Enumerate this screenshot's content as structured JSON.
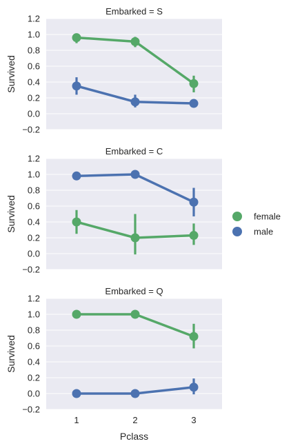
{
  "chart_data": [
    {
      "type": "line",
      "title": "Embarked = S",
      "xlabel": "",
      "ylabel": "Survived",
      "categories": [
        "1",
        "2",
        "3"
      ],
      "ylim": [
        -0.2,
        1.2
      ],
      "yticks": [
        "−0.2",
        "0.0",
        "0.2",
        "0.4",
        "0.6",
        "0.8",
        "1.0",
        "1.2"
      ],
      "grid": true,
      "series": [
        {
          "name": "female",
          "values": [
            0.96,
            0.91,
            0.38
          ],
          "ci_low": [
            0.89,
            0.84,
            0.27
          ],
          "ci_high": [
            0.99,
            0.97,
            0.48
          ]
        },
        {
          "name": "male",
          "values": [
            0.35,
            0.15,
            0.13
          ],
          "ci_low": [
            0.24,
            0.08,
            0.08
          ],
          "ci_high": [
            0.46,
            0.24,
            0.17
          ]
        }
      ]
    },
    {
      "type": "line",
      "title": "Embarked = C",
      "xlabel": "",
      "ylabel": "Survived",
      "categories": [
        "1",
        "2",
        "3"
      ],
      "ylim": [
        -0.2,
        1.2
      ],
      "yticks": [
        "−0.2",
        "0.0",
        "0.2",
        "0.4",
        "0.6",
        "0.8",
        "1.0",
        "1.2"
      ],
      "grid": true,
      "series": [
        {
          "name": "female",
          "values": [
            0.4,
            0.2,
            0.23
          ],
          "ci_low": [
            0.25,
            -0.01,
            0.11
          ],
          "ci_high": [
            0.55,
            0.5,
            0.38
          ]
        },
        {
          "name": "male",
          "values": [
            0.98,
            1.0,
            0.65
          ],
          "ci_low": [
            0.95,
            1.0,
            0.47
          ],
          "ci_high": [
            1.0,
            1.0,
            0.83
          ]
        }
      ]
    },
    {
      "type": "line",
      "title": "Embarked = Q",
      "xlabel": "Pclass",
      "ylabel": "Survived",
      "categories": [
        "1",
        "2",
        "3"
      ],
      "ylim": [
        -0.2,
        1.2
      ],
      "yticks": [
        "−0.2",
        "0.0",
        "0.2",
        "0.4",
        "0.6",
        "0.8",
        "1.0",
        "1.2"
      ],
      "grid": true,
      "series": [
        {
          "name": "female",
          "values": [
            1.0,
            1.0,
            0.72
          ],
          "ci_low": [
            1.0,
            1.0,
            0.57
          ],
          "ci_high": [
            1.0,
            1.0,
            0.88
          ]
        },
        {
          "name": "male",
          "values": [
            0.0,
            0.0,
            0.08
          ],
          "ci_low": [
            0.0,
            0.0,
            -0.01
          ],
          "ci_high": [
            0.0,
            0.0,
            0.19
          ]
        }
      ]
    }
  ],
  "legend": {
    "placement": "right",
    "items": [
      {
        "label": "female",
        "color": "#55a868"
      },
      {
        "label": "male",
        "color": "#4c72b0"
      }
    ]
  },
  "colors": {
    "female": "#55a868",
    "male": "#4c72b0",
    "plot_bg": "#eaeaf2",
    "grid": "#ffffff"
  }
}
